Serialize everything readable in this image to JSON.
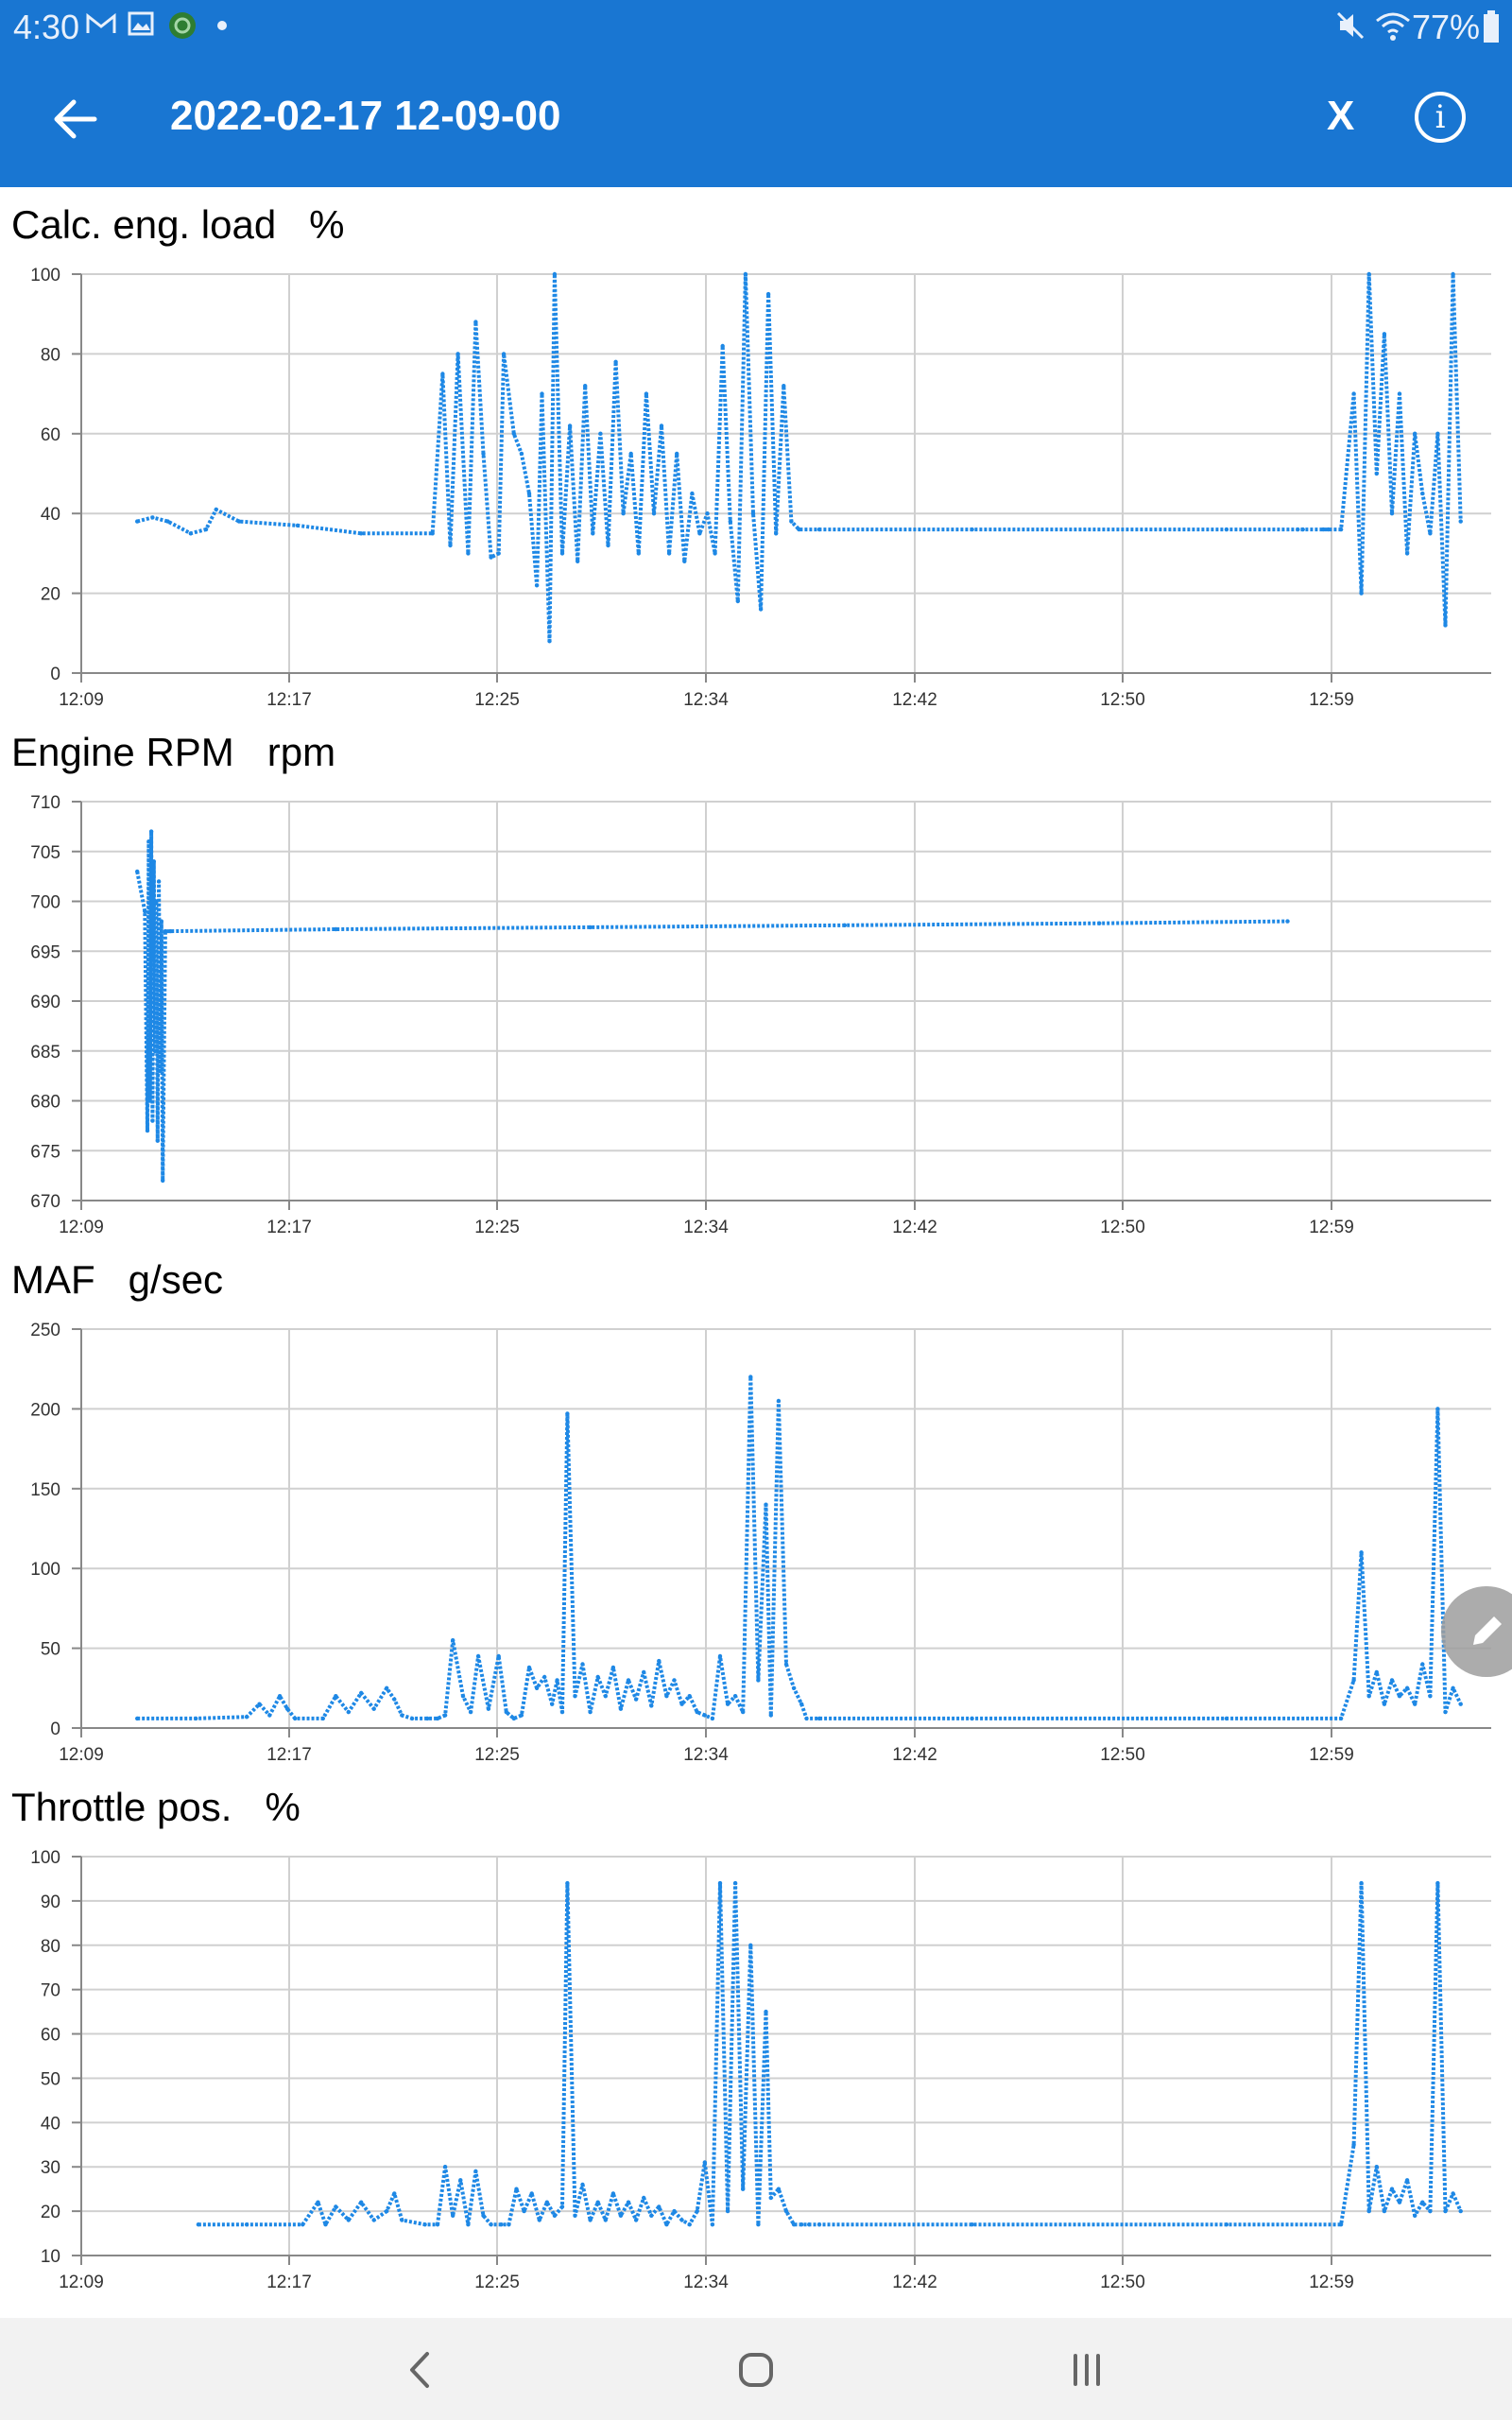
{
  "status_bar": {
    "time": "4:30",
    "battery": "77%",
    "left_icons": [
      "gmail-icon",
      "gallery-icon",
      "app-icon",
      "dot-icon"
    ],
    "right_icons": [
      "mute-icon",
      "wifi-icon",
      "battery-icon"
    ]
  },
  "app_bar": {
    "title": "2022-02-17 12-09-00",
    "close_label": "X",
    "info_label": "i"
  },
  "colors": {
    "accent": "#1976d2",
    "series": "#1e88e5",
    "grid": "#d0d0d0"
  },
  "x_ticks": [
    "12:09",
    "12:17",
    "12:25",
    "12:34",
    "12:42",
    "12:50",
    "12:59"
  ],
  "chart_data": [
    {
      "type": "line",
      "title": "Calc. eng. load   %",
      "x_unit": "minutes after 12:09",
      "ylim": [
        0,
        100
      ],
      "yticks": [
        0,
        20,
        40,
        60,
        80,
        100
      ],
      "grid": true,
      "x": [
        2.2,
        2.8,
        3.4,
        4.3,
        4.9,
        5.3,
        6.2,
        8.5,
        11.0,
        13.8,
        14.2,
        14.5,
        14.8,
        15.2,
        15.5,
        15.8,
        16.1,
        16.4,
        16.6,
        17.0,
        17.3,
        17.6,
        17.9,
        18.1,
        18.4,
        18.6,
        18.9,
        19.2,
        19.5,
        19.8,
        20.1,
        20.4,
        20.7,
        21.0,
        21.3,
        21.6,
        21.9,
        22.2,
        22.5,
        22.8,
        23.1,
        23.4,
        23.7,
        24.0,
        24.3,
        24.6,
        24.9,
        25.2,
        25.5,
        25.8,
        26.1,
        26.4,
        26.7,
        27.0,
        27.3,
        27.6,
        27.9,
        28.2,
        29.0,
        35.0,
        45.0,
        47.8,
        48.0,
        48.8,
        49.0,
        49.5,
        50.0,
        50.3,
        50.6,
        50.9,
        51.2,
        51.5,
        51.8,
        52.1,
        52.4,
        52.7,
        53.0,
        53.3,
        53.6,
        53.9,
        54.2
      ],
      "y": [
        38,
        39,
        38,
        35,
        36,
        41,
        38,
        37,
        35,
        35,
        75,
        32,
        80,
        30,
        88,
        55,
        29,
        30,
        80,
        60,
        55,
        45,
        22,
        70,
        8,
        100,
        30,
        62,
        28,
        72,
        35,
        60,
        32,
        78,
        40,
        55,
        30,
        70,
        40,
        62,
        30,
        55,
        28,
        45,
        35,
        40,
        30,
        82,
        38,
        18,
        100,
        40,
        16,
        95,
        35,
        72,
        38,
        36,
        36,
        36,
        36,
        36,
        36,
        36,
        36,
        36,
        70,
        20,
        100,
        50,
        85,
        40,
        70,
        30,
        60,
        45,
        35,
        60,
        12,
        100,
        38
      ]
    },
    {
      "type": "line",
      "title": "Engine RPM   rpm",
      "x_unit": "minutes after 12:09",
      "ylim": [
        670,
        710
      ],
      "yticks": [
        670,
        675,
        680,
        685,
        690,
        695,
        700,
        705,
        710
      ],
      "grid": true,
      "x": [
        2.2,
        2.5,
        2.6,
        2.65,
        2.7,
        2.75,
        2.8,
        2.85,
        2.9,
        2.95,
        3.0,
        3.05,
        3.1,
        3.15,
        3.2,
        3.3,
        3.5,
        10.0,
        20.0,
        30.0,
        40.0,
        47.4
      ],
      "y": [
        703,
        699,
        677,
        706,
        680,
        707,
        678,
        704,
        685,
        700,
        676,
        702,
        683,
        698,
        672,
        697,
        697,
        697.2,
        697.4,
        697.6,
        697.8,
        698
      ]
    },
    {
      "type": "line",
      "title": "MAF   g/sec",
      "x_unit": "minutes after 12:09",
      "ylim": [
        0,
        250
      ],
      "yticks": [
        0,
        50,
        100,
        150,
        200,
        250
      ],
      "grid": true,
      "x": [
        2.2,
        4.5,
        6.5,
        7.0,
        7.4,
        7.8,
        8.1,
        8.4,
        9.5,
        10.0,
        10.5,
        11.0,
        11.5,
        12.0,
        12.3,
        12.6,
        13.0,
        13.6,
        14.0,
        14.3,
        14.6,
        15.0,
        15.3,
        15.6,
        16.0,
        16.4,
        16.7,
        17.0,
        17.3,
        17.6,
        17.9,
        18.2,
        18.5,
        18.7,
        18.9,
        19.1,
        19.4,
        19.7,
        20.0,
        20.3,
        20.6,
        20.9,
        21.2,
        21.5,
        21.8,
        22.1,
        22.4,
        22.7,
        23.0,
        23.3,
        23.6,
        23.9,
        24.2,
        24.5,
        24.8,
        25.1,
        25.4,
        25.7,
        26.0,
        26.3,
        26.6,
        26.9,
        27.1,
        27.4,
        27.7,
        28.0,
        28.3,
        28.5,
        29.0,
        35.0,
        45.0,
        49.5,
        50.0,
        50.3,
        50.6,
        50.9,
        51.2,
        51.5,
        51.8,
        52.1,
        52.4,
        52.7,
        53.0,
        53.3,
        53.6,
        53.9,
        54.2
      ],
      "y": [
        6,
        6,
        7,
        15,
        8,
        20,
        12,
        6,
        6,
        20,
        10,
        22,
        12,
        25,
        18,
        8,
        6,
        6,
        6,
        8,
        55,
        20,
        10,
        45,
        12,
        45,
        10,
        6,
        8,
        38,
        25,
        32,
        15,
        30,
        10,
        197,
        20,
        40,
        10,
        32,
        20,
        38,
        12,
        30,
        18,
        35,
        14,
        42,
        20,
        30,
        15,
        20,
        10,
        8,
        6,
        45,
        15,
        20,
        10,
        220,
        30,
        140,
        8,
        205,
        40,
        25,
        15,
        6,
        6,
        6,
        6,
        6,
        30,
        110,
        20,
        35,
        15,
        30,
        20,
        25,
        15,
        40,
        20,
        200,
        10,
        25,
        15
      ]
    },
    {
      "type": "line",
      "title": "Throttle pos.   %",
      "x_unit": "minutes after 12:09",
      "ylim": [
        10,
        100
      ],
      "yticks": [
        10,
        20,
        30,
        40,
        50,
        60,
        70,
        80,
        90,
        100
      ],
      "grid": true,
      "x": [
        4.6,
        6.5,
        8.7,
        9.3,
        9.6,
        10.0,
        10.5,
        11.0,
        11.5,
        12.0,
        12.3,
        12.6,
        13.5,
        14.0,
        14.3,
        14.6,
        14.9,
        15.2,
        15.5,
        15.8,
        16.1,
        16.5,
        16.8,
        17.1,
        17.4,
        17.7,
        18.0,
        18.3,
        18.6,
        18.9,
        19.1,
        19.4,
        19.7,
        20.0,
        20.3,
        20.6,
        20.9,
        21.2,
        21.5,
        21.8,
        22.1,
        22.4,
        22.7,
        23.0,
        23.3,
        23.6,
        23.9,
        24.2,
        24.5,
        24.8,
        25.1,
        25.4,
        25.7,
        26.0,
        26.3,
        26.6,
        26.9,
        27.1,
        27.4,
        27.7,
        28.0,
        28.3,
        28.6,
        29.0,
        35.0,
        45.0,
        49.5,
        50.0,
        50.3,
        50.6,
        50.9,
        51.2,
        51.5,
        51.8,
        52.1,
        52.4,
        52.7,
        53.0,
        53.3,
        53.6,
        53.9,
        54.2
      ],
      "y": [
        17,
        17,
        17,
        22,
        17,
        21,
        18,
        22,
        18,
        20,
        24,
        18,
        17,
        17,
        30,
        19,
        27,
        17,
        29,
        19,
        17,
        17,
        17,
        25,
        20,
        24,
        18,
        22,
        19,
        21,
        94,
        19,
        26,
        18,
        22,
        18,
        24,
        19,
        22,
        18,
        23,
        19,
        21,
        17,
        20,
        18,
        17,
        20,
        31,
        17,
        94,
        20,
        94,
        25,
        80,
        17,
        65,
        23,
        25,
        20,
        17,
        17,
        17,
        17,
        17,
        17,
        17,
        35,
        94,
        20,
        30,
        20,
        25,
        22,
        27,
        19,
        22,
        20,
        94,
        20,
        24,
        20
      ]
    }
  ]
}
